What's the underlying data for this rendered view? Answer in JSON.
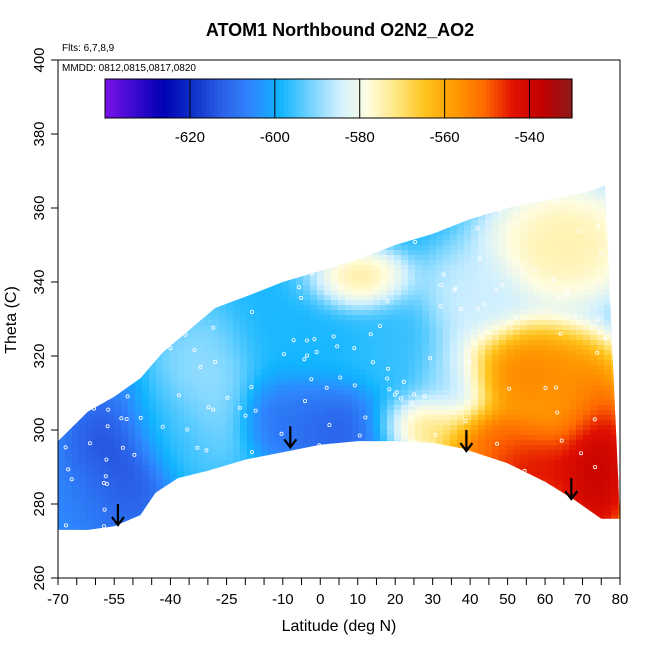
{
  "chart_data": {
    "type": "heatmap",
    "title": "ATOM1 Northbound O2N2_AO2",
    "annotations": [
      "Flts: 6,7,8,9",
      "MMDD: 0812,0815,0817,0820"
    ],
    "xlabel": "Latitude (deg N)",
    "ylabel": "Theta (C)",
    "xlim": [
      -70,
      80
    ],
    "ylim": [
      260,
      400
    ],
    "x_tick_labels": [
      "-70",
      "-55",
      "-40",
      "-25",
      "-10",
      "0",
      "10",
      "20",
      "30",
      "40",
      "50",
      "60",
      "70",
      "80"
    ],
    "y_tick_labels": [
      "260",
      "280",
      "300",
      "320",
      "340",
      "360",
      "380",
      "400"
    ],
    "colorbar": {
      "range": [
        -640,
        -530
      ],
      "tick_values": [
        -620,
        -600,
        -580,
        -560,
        -540
      ],
      "tick_labels": [
        "-620",
        "-600",
        "-580",
        "-560",
        "-540"
      ],
      "colors": [
        "#7b12e8",
        "#3a0ad0",
        "#0000b4",
        "#1030c8",
        "#2a60e6",
        "#2f86ff",
        "#10b4ff",
        "#70d2ff",
        "#cfefff",
        "#fffde0",
        "#ffe680",
        "#ffc21a",
        "#ff9a00",
        "#ff6a00",
        "#e01000",
        "#c00000",
        "#8b1a1a"
      ]
    },
    "region_boundary": {
      "top": [
        [
          -70,
          297
        ],
        [
          -62,
          305
        ],
        [
          -55,
          309
        ],
        [
          -48,
          314
        ],
        [
          -42,
          321
        ],
        [
          -35,
          327
        ],
        [
          -28,
          333
        ],
        [
          -20,
          336
        ],
        [
          -10,
          340
        ],
        [
          0,
          343
        ],
        [
          10,
          346
        ],
        [
          20,
          350
        ],
        [
          30,
          353
        ],
        [
          40,
          357
        ],
        [
          50,
          360
        ],
        [
          60,
          362
        ],
        [
          70,
          364
        ],
        [
          76,
          366
        ]
      ],
      "right_top": [
        76,
        366
      ],
      "right_bottom": [
        80,
        276
      ],
      "bottom": [
        [
          80,
          276
        ],
        [
          75,
          276
        ],
        [
          68,
          281
        ],
        [
          60,
          286
        ],
        [
          50,
          291
        ],
        [
          38,
          295
        ],
        [
          30,
          296.5
        ],
        [
          20,
          297
        ],
        [
          10,
          297
        ],
        [
          0,
          296
        ],
        [
          -10,
          294
        ],
        [
          -20,
          292
        ],
        [
          -30,
          289
        ],
        [
          -38,
          287
        ],
        [
          -44,
          283
        ],
        [
          -48,
          277
        ],
        [
          -55,
          274
        ],
        [
          -62,
          273
        ],
        [
          -70,
          273
        ]
      ]
    },
    "field": {
      "description_of_regions": "values in color-scale units",
      "base_value": -598,
      "blobs": [
        {
          "lat": -55,
          "theta": 290,
          "value": -618,
          "radius": [
            10,
            14
          ]
        },
        {
          "lat": -62,
          "theta": 282,
          "value": -606,
          "radius": [
            10,
            10
          ]
        },
        {
          "lat": -40,
          "theta": 300,
          "value": -596,
          "radius": [
            10,
            10
          ]
        },
        {
          "lat": -30,
          "theta": 312,
          "value": -588,
          "radius": [
            10,
            14
          ]
        },
        {
          "lat": -8,
          "theta": 305,
          "value": -610,
          "radius": [
            10,
            8
          ]
        },
        {
          "lat": 5,
          "theta": 302,
          "value": -614,
          "radius": [
            12,
            8
          ]
        },
        {
          "lat": -5,
          "theta": 325,
          "value": -598,
          "radius": [
            15,
            15
          ]
        },
        {
          "lat": 20,
          "theta": 320,
          "value": -596,
          "radius": [
            10,
            15
          ]
        },
        {
          "lat": 28,
          "theta": 302,
          "value": -566,
          "radius": [
            10,
            6
          ]
        },
        {
          "lat": 35,
          "theta": 312,
          "value": -590,
          "radius": [
            8,
            10
          ]
        },
        {
          "lat": 10,
          "theta": 340,
          "value": -568,
          "radius": [
            10,
            6
          ]
        },
        {
          "lat": 40,
          "theta": 335,
          "value": -584,
          "radius": [
            10,
            10
          ]
        },
        {
          "lat": 65,
          "theta": 350,
          "value": -572,
          "radius": [
            15,
            12
          ]
        },
        {
          "lat": 55,
          "theta": 315,
          "value": -550,
          "radius": [
            15,
            10
          ]
        },
        {
          "lat": 45,
          "theta": 298,
          "value": -548,
          "radius": [
            10,
            6
          ]
        },
        {
          "lat": 58,
          "theta": 290,
          "value": -538,
          "radius": [
            14,
            10
          ]
        },
        {
          "lat": 74,
          "theta": 290,
          "value": -532,
          "radius": [
            8,
            18
          ]
        },
        {
          "lat": 65,
          "theta": 308,
          "value": -556,
          "radius": [
            10,
            10
          ]
        }
      ]
    },
    "arrows": [
      {
        "lat": -54,
        "theta": 280,
        "direction": "down"
      },
      {
        "lat": -8,
        "theta": 301,
        "direction": "down"
      },
      {
        "lat": 39,
        "theta": 300,
        "direction": "down"
      },
      {
        "lat": 67,
        "theta": 287,
        "direction": "down"
      }
    ],
    "grid": false,
    "legend": "colorbar-top"
  }
}
